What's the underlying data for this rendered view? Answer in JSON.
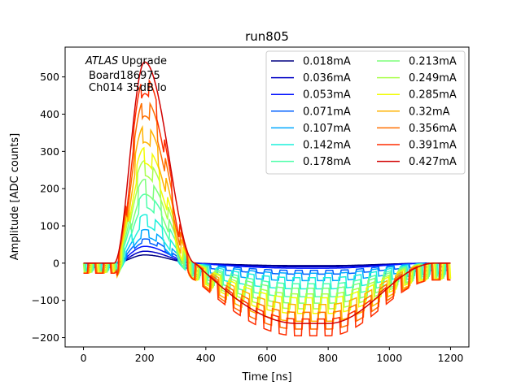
{
  "chart_data": {
    "type": "line",
    "title": "run805",
    "xlabel": "Time [ns]",
    "ylabel": "Amplitude [ADC counts]",
    "xlim": [
      -60,
      1260
    ],
    "ylim": [
      -225,
      580
    ],
    "xticks": [
      0,
      200,
      400,
      600,
      800,
      1000,
      1200
    ],
    "yticks": [
      -200,
      -100,
      0,
      100,
      200,
      300,
      400,
      500
    ],
    "grid": false,
    "legend": {
      "placement": "top-right",
      "columns": 2
    },
    "annotation": {
      "line1_italic": "ATLAS",
      "line1_rest": " Upgrade",
      "line2": "Board186975",
      "line3": "Ch014 35dB lo"
    },
    "pulse_shape": {
      "x_start": 0,
      "x_end": 1200,
      "baseline_until": 100,
      "peak_time": 200,
      "zero_cross_time": 365,
      "undershoot_min_time": 700,
      "undershoot_end_time": 1150,
      "undershoot_ratio": -0.3,
      "ripple_period_ns": 25,
      "ripple_onset_time": 110
    },
    "series": [
      {
        "name": "0.018mA",
        "color": "#000080",
        "peak": 22,
        "ripple": 0
      },
      {
        "name": "0.036mA",
        "color": "#0000c4",
        "peak": 32,
        "ripple": 0
      },
      {
        "name": "0.053mA",
        "color": "#0010ff",
        "peak": 45,
        "ripple": 0
      },
      {
        "name": "0.071mA",
        "color": "#0060ff",
        "peak": 65,
        "ripple": 10
      },
      {
        "name": "0.107mA",
        "color": "#00a8ff",
        "peak": 90,
        "ripple": 20
      },
      {
        "name": "0.142mA",
        "color": "#1cf0db",
        "peak": 130,
        "ripple": 30
      },
      {
        "name": "0.178mA",
        "color": "#4dffaa",
        "peak": 185,
        "ripple": 35
      },
      {
        "name": "0.213mA",
        "color": "#7dff7a",
        "peak": 225,
        "ripple": 40
      },
      {
        "name": "0.249mA",
        "color": "#aaff4d",
        "peak": 275,
        "ripple": 40
      },
      {
        "name": "0.285mA",
        "color": "#f1fc06",
        "peak": 310,
        "ripple": 42
      },
      {
        "name": "0.32mA",
        "color": "#ffb200",
        "peak": 370,
        "ripple": 45
      },
      {
        "name": "0.356mA",
        "color": "#ff6f00",
        "peak": 440,
        "ripple": 45
      },
      {
        "name": "0.391mA",
        "color": "#ff2d00",
        "peak": 500,
        "ripple": 45
      },
      {
        "name": "0.427mA",
        "color": "#d10000",
        "peak": 540,
        "ripple": 0
      }
    ]
  }
}
